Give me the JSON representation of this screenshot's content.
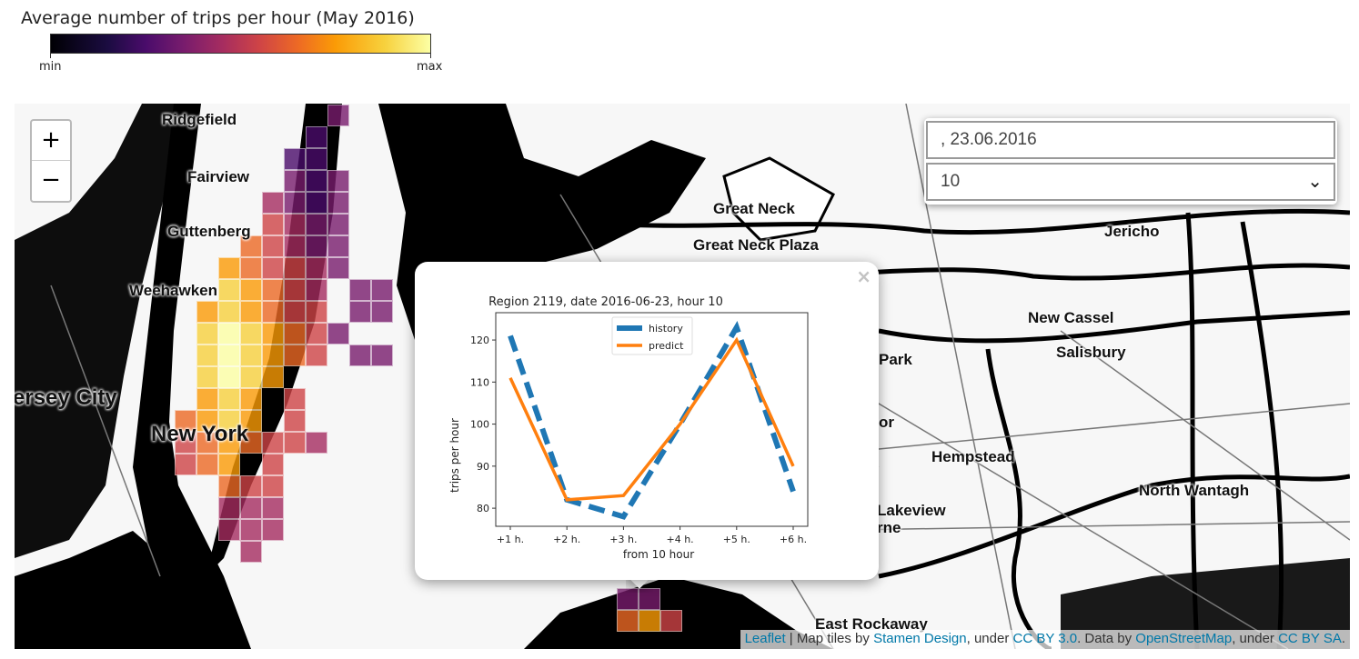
{
  "legend": {
    "title": "Average number of trips per hour (May 2016)",
    "min_label": "min",
    "max_label": "max",
    "colormap": "inferno"
  },
  "map": {
    "places": [
      "Ridgefield",
      "Fairview",
      "Guttenberg",
      "Weehawken",
      "ersey City",
      "New York",
      "Great Neck",
      "Great Neck Plaza",
      "Jericho",
      "New Cassel",
      "Salisbury",
      "Park",
      "or",
      "Hempstead",
      "North Wantagh",
      "Lakeview",
      "rne",
      "East Rockaway"
    ],
    "zoom_in": "+",
    "zoom_out": "−"
  },
  "controls": {
    "date_value": ", 23.06.2016",
    "hour_value": "10",
    "chevron": "chevron-down-icon"
  },
  "popup": {
    "close": "×"
  },
  "attribution": {
    "leaflet": "Leaflet",
    "sep": " | Map tiles by ",
    "stamen": "Stamen Design",
    "under1": ", under ",
    "ccby": "CC BY 3.0",
    "data_by": ". Data by ",
    "osm": "OpenStreetMap",
    "under2": ", under ",
    "ccbysa": "CC BY SA",
    "end": "."
  },
  "chart_data": {
    "type": "line",
    "title": "Region 2119, date 2016-06-23, hour 10",
    "xlabel": "from 10 hour",
    "ylabel": "trips per hour",
    "categories": [
      "+1 h.",
      "+2 h.",
      "+3 h.",
      "+4 h.",
      "+5 h.",
      "+6 h."
    ],
    "ylim": [
      75.7,
      126.5
    ],
    "yticks": [
      80,
      90,
      100,
      110,
      120
    ],
    "legend_position": "top-center",
    "series": [
      {
        "name": "history",
        "values": [
          121,
          82,
          78,
          100,
          123,
          84
        ],
        "color": "#1f77b4",
        "style": "dashed"
      },
      {
        "name": "predict",
        "values": [
          111,
          82,
          83,
          100,
          120,
          90
        ],
        "color": "#ff7f0e",
        "style": "solid"
      }
    ]
  }
}
